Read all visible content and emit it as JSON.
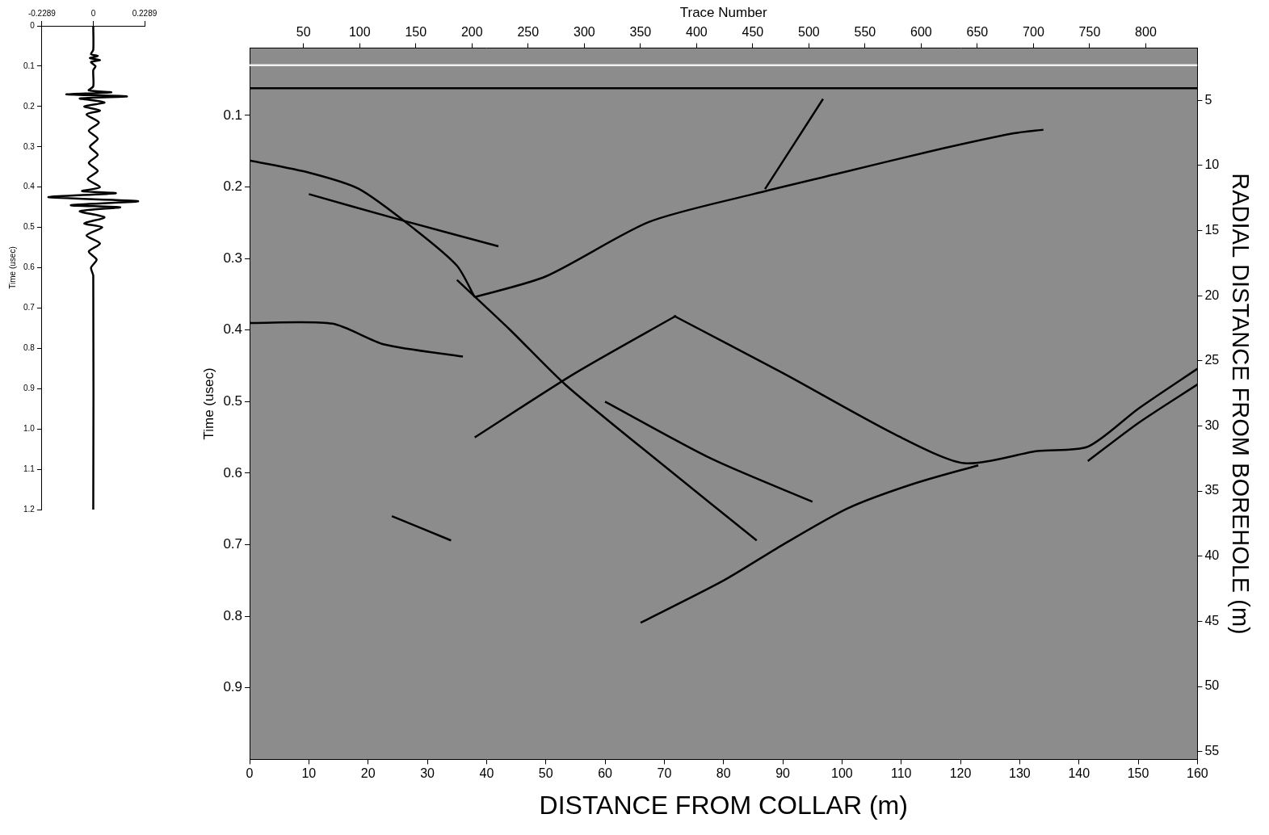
{
  "chart_data": [
    {
      "type": "line",
      "ylabel": "Time (usec)",
      "xlim": [
        -0.2289,
        0.2289
      ],
      "xticks": [
        -0.2289,
        0,
        0.2289
      ],
      "ylim": [
        0,
        1.2
      ],
      "yticks": [
        0,
        0.1,
        0.2,
        0.3,
        0.4,
        0.5,
        0.6,
        0.7,
        0.8,
        0.9,
        {
          "value": 1,
          "label": "1.0"
        },
        1.1,
        1.2
      ],
      "grid": false,
      "series": [
        {
          "color": "#000000",
          "x": [
            0,
            0,
            -0.01,
            0.02,
            -0.015,
            0.03,
            -0.01,
            0.01,
            0,
            0,
            -0.02,
            0.08,
            -0.12,
            0.15,
            -0.06,
            0.05,
            -0.04,
            0.03,
            -0.03,
            0.025,
            -0.02,
            0.02,
            -0.015,
            0.02,
            -0.02,
            0.02,
            -0.025,
            0.03,
            -0.05,
            0.1,
            -0.2,
            0.2,
            -0.1,
            0.12,
            -0.06,
            0.05,
            -0.04,
            0.04,
            -0.03,
            0.03,
            -0.02,
            0.015,
            -0.01,
            0,
            0
          ],
          "values": [
            0,
            0.06,
            0.07,
            0.075,
            0.08,
            0.085,
            0.09,
            0.1,
            0.11,
            0.15,
            0.16,
            0.165,
            0.17,
            0.175,
            0.18,
            0.19,
            0.2,
            0.21,
            0.22,
            0.24,
            0.26,
            0.28,
            0.3,
            0.32,
            0.34,
            0.36,
            0.38,
            0.4,
            0.41,
            0.415,
            0.425,
            0.435,
            0.445,
            0.45,
            0.46,
            0.475,
            0.49,
            0.5,
            0.52,
            0.54,
            0.56,
            0.58,
            0.6,
            0.62,
            1.2
          ]
        }
      ]
    },
    {
      "type": "line",
      "xlabel": "DISTANCE FROM COLLAR (m)",
      "ylabel": "Time (usec)",
      "x2label": "Trace Number",
      "y2label": "RADIAL DISTANCE FROM BOREHOLE (m)",
      "xlim": [
        0,
        160
      ],
      "xticks": [
        0,
        10,
        20,
        30,
        40,
        50,
        60,
        70,
        80,
        90,
        100,
        110,
        120,
        130,
        140,
        150,
        160
      ],
      "x2lim": [
        2,
        846
      ],
      "x2ticks": [
        50,
        100,
        150,
        200,
        250,
        300,
        350,
        400,
        450,
        500,
        550,
        600,
        650,
        700,
        750,
        800
      ],
      "ylim": [
        0.006,
        1.0
      ],
      "yticks": [
        0.1,
        0.2,
        0.3,
        0.4,
        0.5,
        0.6,
        0.7,
        0.8,
        0.9
      ],
      "y2lim": [
        1.0,
        55.6
      ],
      "y2ticks": [
        5,
        10,
        15,
        20,
        25,
        30,
        35,
        40,
        45,
        50,
        55
      ],
      "grid": false,
      "series": [
        {
          "color": "#f2f2f2",
          "x": [
            0,
            160
          ],
          "values": [
            0.03,
            0.03
          ]
        },
        {
          "color": "#000000",
          "x": [
            0,
            160
          ],
          "values": [
            0.062,
            0.062
          ]
        },
        {
          "color": "#000000",
          "x": [
            38,
            50,
            67.4,
            85,
            100,
            115,
            129,
            134
          ],
          "values": [
            0.354,
            0.325,
            0.249,
            0.21,
            0.18,
            0.15,
            0.125,
            0.12
          ]
        },
        {
          "color": "#000000",
          "x": [
            0,
            10,
            18.5,
            28,
            35,
            38
          ],
          "values": [
            0.163,
            0.18,
            0.203,
            0.26,
            0.31,
            0.354
          ]
        },
        {
          "color": "#000000",
          "x": [
            0,
            14,
            22.7,
            36
          ],
          "values": [
            0.39,
            0.391,
            0.42,
            0.437
          ]
        },
        {
          "color": "#000000",
          "x": [
            71.6,
            90,
            109,
            120.6,
            133,
            141.5,
            150,
            160
          ],
          "values": [
            0.38,
            0.46,
            0.546,
            0.586,
            0.569,
            0.563,
            0.51,
            0.454
          ]
        },
        {
          "color": "#000000",
          "x": [
            141.5,
            150,
            160
          ],
          "values": [
            0.583,
            0.53,
            0.476
          ]
        },
        {
          "color": "#000000",
          "x": [
            66,
            80,
            90,
            101,
            112,
            123
          ],
          "values": [
            0.809,
            0.75,
            0.7,
            0.649,
            0.615,
            0.589
          ]
        },
        {
          "color": "#000000",
          "x": [
            35,
            44,
            53.4,
            70,
            85.6
          ],
          "values": [
            0.33,
            0.4,
            0.477,
            0.59,
            0.694
          ]
        },
        {
          "color": "#000000",
          "x": [
            24,
            34
          ],
          "values": [
            0.66,
            0.694
          ]
        },
        {
          "color": "#000000",
          "x": [
            87,
            96.8
          ],
          "values": [
            0.203,
            0.077
          ]
        },
        {
          "color": "#000000",
          "x": [
            38,
            55,
            72
          ],
          "values": [
            0.55,
            0.46,
            0.38
          ]
        },
        {
          "color": "#000000",
          "x": [
            60,
            78,
            95
          ],
          "values": [
            0.5,
            0.58,
            0.64
          ]
        },
        {
          "color": "#000000",
          "x": [
            10,
            25,
            42
          ],
          "values": [
            0.21,
            0.245,
            0.283
          ]
        }
      ]
    }
  ]
}
